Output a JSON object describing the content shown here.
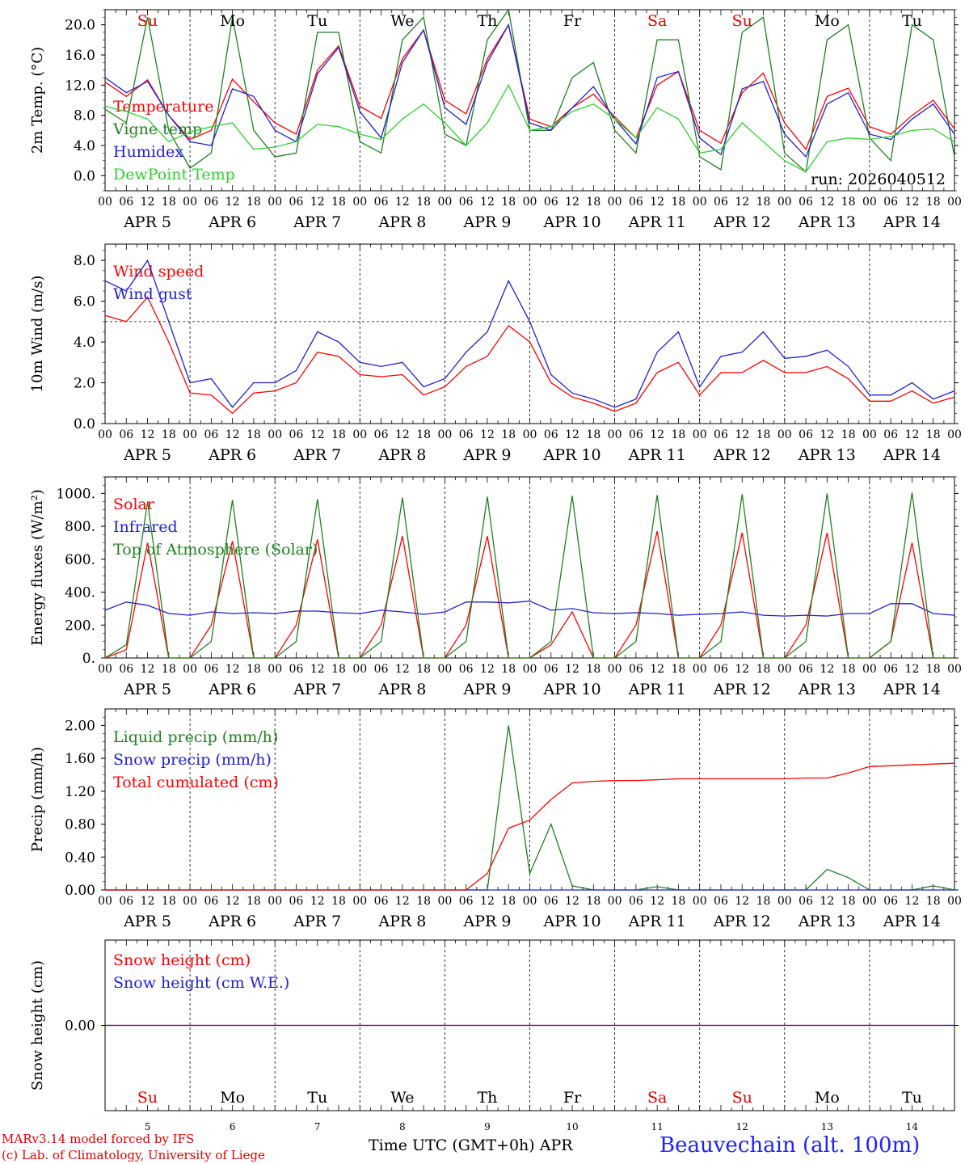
{
  "day_names": [
    "Su",
    "Mo",
    "Tu",
    "We",
    "Th",
    "Fr",
    "Sa",
    "Su",
    "Mo",
    "Tu"
  ],
  "weekend_color": "#e00000",
  "weekday_color": "#000000",
  "hour_ticks": [
    "00",
    "06",
    "12",
    "18"
  ],
  "date_labels": [
    "APR  5",
    "APR  6",
    "APR  7",
    "APR  8",
    "APR  9",
    "APR 10",
    "APR 11",
    "APR 12",
    "APR 13",
    "APR 14"
  ],
  "bottom_date_numbers": [
    "5",
    "6",
    "7",
    "8",
    "9",
    "10",
    "11",
    "12",
    "13",
    "14"
  ],
  "footer": {
    "model": "MARv3.14 model forced by IFS",
    "copyright": "(c) Lab. of Climatology, University of Liege",
    "time_axis": "Time UTC (GMT+0h) APR",
    "station": "Beauvechain (alt. 100m)"
  },
  "chart_data": [
    {
      "id": "temperature",
      "type": "line",
      "ylabel": "2m Temp. (°C)",
      "ylim": [
        -2,
        22
      ],
      "yticks": [
        "0.0",
        "4.0",
        "8.0",
        "12.0",
        "16.0",
        "20.0"
      ],
      "ytick_values": [
        0,
        4,
        8,
        12,
        16,
        20
      ],
      "annotation": "run: 2026040512",
      "x_hours": [
        0,
        6,
        12,
        18,
        24,
        30,
        36,
        42,
        48,
        54,
        60,
        66,
        72,
        78,
        84,
        90,
        96,
        102,
        108,
        114,
        120,
        126,
        132,
        138,
        144,
        150,
        156,
        162,
        168,
        174,
        180,
        186,
        192,
        198,
        204,
        210,
        216,
        222,
        228,
        234,
        240
      ],
      "series": [
        {
          "name": "Temperature",
          "color": "#ff0000",
          "values": [
            12.4,
            10.5,
            12.7,
            8.0,
            4.8,
            6.0,
            12.8,
            9.8,
            7.0,
            5.5,
            14.0,
            17.2,
            9.2,
            7.6,
            15.5,
            19.3,
            10.0,
            8.2,
            15.5,
            20.0,
            7.5,
            6.5,
            9.0,
            10.8,
            7.8,
            5.0,
            12.0,
            13.8,
            6.0,
            4.3,
            11.0,
            13.6,
            7.0,
            3.5,
            10.5,
            11.6,
            6.5,
            5.5,
            8.0,
            10.0,
            6.2
          ]
        },
        {
          "name": "Vigne temp",
          "color": "#208020",
          "values": [
            8.8,
            7.0,
            21.0,
            6.0,
            1.0,
            3.0,
            21.0,
            6.0,
            2.5,
            3.0,
            19.0,
            19.0,
            4.5,
            3.0,
            18.0,
            21.0,
            5.5,
            4.0,
            18.0,
            22.0,
            6.0,
            6.0,
            13.0,
            15.0,
            6.0,
            3.0,
            18.0,
            18.0,
            2.5,
            0.8,
            19.0,
            21.0,
            3.0,
            0.5,
            18.0,
            20.0,
            5.0,
            2.0,
            20.0,
            18.0,
            2.5
          ]
        },
        {
          "name": "Humidex",
          "color": "#2020d0",
          "values": [
            13.0,
            11.0,
            12.5,
            8.0,
            4.5,
            4.0,
            11.5,
            10.5,
            6.0,
            4.5,
            13.5,
            17.0,
            8.5,
            5.0,
            15.0,
            19.3,
            9.0,
            6.8,
            15.0,
            20.0,
            7.0,
            6.0,
            9.0,
            11.8,
            7.5,
            4.2,
            13.0,
            13.8,
            5.0,
            2.8,
            11.5,
            12.5,
            5.5,
            2.5,
            9.5,
            11.0,
            5.5,
            4.8,
            7.5,
            9.5,
            5.5
          ]
        },
        {
          "name": "DewPoint Temp",
          "color": "#30d030",
          "values": [
            9.2,
            8.5,
            7.5,
            4.5,
            5.8,
            6.5,
            7.0,
            3.5,
            3.8,
            4.5,
            6.8,
            6.5,
            5.5,
            4.8,
            7.5,
            9.5,
            7.0,
            4.0,
            7.0,
            12.0,
            6.0,
            6.5,
            8.5,
            9.5,
            7.5,
            5.0,
            9.0,
            7.5,
            3.0,
            3.5,
            7.0,
            4.5,
            2.0,
            0.5,
            4.5,
            5.0,
            4.8,
            5.2,
            6.0,
            6.2,
            4.5
          ]
        }
      ]
    },
    {
      "id": "wind",
      "type": "line",
      "ylabel": "10m Wind (m/s)",
      "ylim": [
        0,
        8.8
      ],
      "yticks": [
        "0.0",
        "2.0",
        "4.0",
        "6.0",
        "8.0"
      ],
      "ytick_values": [
        0,
        2,
        4,
        6,
        8
      ],
      "reference_line": 5,
      "x_hours": [
        0,
        6,
        12,
        18,
        24,
        30,
        36,
        42,
        48,
        54,
        60,
        66,
        72,
        78,
        84,
        90,
        96,
        102,
        108,
        114,
        120,
        126,
        132,
        138,
        144,
        150,
        156,
        162,
        168,
        174,
        180,
        186,
        192,
        198,
        204,
        210,
        216,
        222,
        228,
        234,
        240
      ],
      "series": [
        {
          "name": "Wind speed",
          "color": "#ff0000",
          "values": [
            5.3,
            5.0,
            6.2,
            4.0,
            1.5,
            1.4,
            0.5,
            1.5,
            1.6,
            2.0,
            3.5,
            3.3,
            2.4,
            2.3,
            2.4,
            1.4,
            1.8,
            2.8,
            3.3,
            4.8,
            4.0,
            2.0,
            1.3,
            1.0,
            0.6,
            1.0,
            2.5,
            3.0,
            1.4,
            2.5,
            2.5,
            3.1,
            2.5,
            2.5,
            2.8,
            2.2,
            1.1,
            1.1,
            1.6,
            1.0,
            1.3
          ]
        },
        {
          "name": "Wind gust",
          "color": "#2020d0",
          "values": [
            7.0,
            6.5,
            8.0,
            5.0,
            2.0,
            2.2,
            0.8,
            2.0,
            2.0,
            2.6,
            4.5,
            4.0,
            3.0,
            2.8,
            3.0,
            1.8,
            2.2,
            3.5,
            4.5,
            7.0,
            5.0,
            2.4,
            1.5,
            1.2,
            0.8,
            1.2,
            3.5,
            4.5,
            1.8,
            3.3,
            3.5,
            4.5,
            3.2,
            3.3,
            3.6,
            2.8,
            1.4,
            1.4,
            2.0,
            1.2,
            1.6
          ]
        }
      ]
    },
    {
      "id": "energy",
      "type": "line",
      "ylabel": "Energy fluxes (W/m²)",
      "ylim": [
        0,
        1100
      ],
      "yticks": [
        "0.",
        "200.",
        "400.",
        "600.",
        "800.",
        "1000."
      ],
      "ytick_values": [
        0,
        200,
        400,
        600,
        800,
        1000
      ],
      "x_hours": [
        0,
        6,
        12,
        18,
        24,
        30,
        36,
        42,
        48,
        54,
        60,
        66,
        72,
        78,
        84,
        90,
        96,
        102,
        108,
        114,
        120,
        126,
        132,
        138,
        144,
        150,
        156,
        162,
        168,
        174,
        180,
        186,
        192,
        198,
        204,
        210,
        216,
        222,
        228,
        234,
        240
      ],
      "series": [
        {
          "name": "Solar",
          "color": "#ff0000",
          "values": [
            0,
            50,
            700,
            0,
            0,
            200,
            710,
            0,
            0,
            200,
            720,
            0,
            0,
            200,
            740,
            0,
            0,
            200,
            740,
            0,
            0,
            80,
            280,
            0,
            0,
            200,
            770,
            0,
            0,
            200,
            760,
            0,
            0,
            200,
            760,
            0,
            0,
            100,
            700,
            0,
            0
          ]
        },
        {
          "name": "Infrared",
          "color": "#2020d0",
          "values": [
            290,
            340,
            320,
            270,
            260,
            280,
            270,
            275,
            270,
            285,
            285,
            275,
            270,
            290,
            280,
            265,
            280,
            340,
            340,
            335,
            345,
            290,
            300,
            275,
            270,
            275,
            270,
            260,
            265,
            270,
            280,
            260,
            255,
            260,
            255,
            270,
            270,
            330,
            330,
            270,
            260
          ]
        },
        {
          "name": "Top of Atmosphere (Solar)",
          "color": "#208020",
          "values": [
            0,
            80,
            950,
            0,
            0,
            100,
            960,
            0,
            0,
            100,
            965,
            0,
            0,
            100,
            975,
            0,
            0,
            100,
            980,
            0,
            0,
            100,
            985,
            0,
            0,
            100,
            990,
            0,
            0,
            100,
            995,
            0,
            0,
            100,
            1000,
            0,
            0,
            100,
            1005,
            0,
            0
          ]
        }
      ]
    },
    {
      "id": "precip",
      "type": "line",
      "ylabel": "Precip (mm/h)",
      "ylim": [
        0,
        2.2
      ],
      "yticks": [
        "0.00",
        "0.40",
        "0.80",
        "1.20",
        "1.60",
        "2.00"
      ],
      "ytick_values": [
        0,
        0.4,
        0.8,
        1.2,
        1.6,
        2.0
      ],
      "x_hours": [
        0,
        6,
        12,
        18,
        24,
        30,
        36,
        42,
        48,
        54,
        60,
        66,
        72,
        78,
        84,
        90,
        96,
        102,
        108,
        114,
        120,
        126,
        132,
        138,
        144,
        150,
        156,
        162,
        168,
        174,
        180,
        186,
        192,
        198,
        204,
        210,
        216,
        222,
        228,
        234,
        240
      ],
      "series": [
        {
          "name": "Liquid precip (mm/h)",
          "color": "#208020",
          "values": [
            0,
            0,
            0,
            0,
            0,
            0,
            0,
            0,
            0,
            0,
            0,
            0,
            0,
            0,
            0,
            0,
            0,
            0,
            0,
            2.0,
            0.2,
            0.8,
            0.05,
            0,
            0,
            0,
            0.04,
            0,
            0,
            0,
            0,
            0,
            0,
            0,
            0.25,
            0.15,
            0,
            0,
            0,
            0.05,
            0
          ]
        },
        {
          "name": "Snow precip (mm/h)",
          "color": "#2020d0",
          "values": [
            0,
            0,
            0,
            0,
            0,
            0,
            0,
            0,
            0,
            0,
            0,
            0,
            0,
            0,
            0,
            0,
            0,
            0,
            0,
            0,
            0,
            0,
            0,
            0,
            0,
            0,
            0,
            0,
            0,
            0,
            0,
            0,
            0,
            0,
            0,
            0,
            0,
            0,
            0,
            0,
            0
          ]
        },
        {
          "name": "Total cumulated (cm)",
          "color": "#ff0000",
          "values": [
            0,
            0,
            0,
            0,
            0,
            0,
            0,
            0,
            0,
            0,
            0,
            0,
            0,
            0,
            0,
            0,
            0,
            0,
            0.2,
            0.75,
            0.85,
            1.1,
            1.3,
            1.32,
            1.33,
            1.33,
            1.34,
            1.35,
            1.35,
            1.35,
            1.35,
            1.35,
            1.35,
            1.36,
            1.36,
            1.42,
            1.5,
            1.51,
            1.52,
            1.53,
            1.54
          ]
        }
      ]
    },
    {
      "id": "snow",
      "type": "line",
      "ylabel": "Snow height (cm)",
      "ylim": [
        -1,
        1
      ],
      "yticks": [
        "0.00"
      ],
      "ytick_values": [
        0
      ],
      "x_hours": [
        0,
        240
      ],
      "series": [
        {
          "name": "Snow height (cm)",
          "color": "#ff0000",
          "values": [
            0,
            0
          ]
        },
        {
          "name": "Snow height (cm W.E.)",
          "color": "#2020d0",
          "values": [
            0,
            0
          ]
        }
      ]
    }
  ]
}
